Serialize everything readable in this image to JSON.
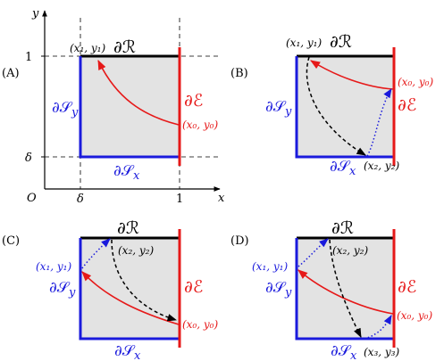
{
  "colors": {
    "region_fill": "#e3e3e3",
    "top_edge": "#000000",
    "left_bottom_edges": "#1a1adc",
    "right_edge": "#e61919",
    "red_curve": "#e61919",
    "black_dashed": "#000000",
    "blue_dotted": "#1a1adc"
  },
  "panels": {
    "A": {
      "letter": "(A)",
      "axis_y_label": "y",
      "axis_x_label": "x",
      "origin_label": "O",
      "tick_y_one": "1",
      "tick_y_delta": "δ",
      "tick_x_delta": "δ",
      "tick_x_one": "1",
      "R_label": "∂ℛ",
      "Sy_label": "∂𝒮",
      "Sy_sub": "y",
      "Sx_label": "∂𝒮",
      "Sx_sub": "x",
      "E_label": "∂ℰ",
      "pt1": "(x₁, y₁)",
      "pt0": "(x₀, y₀)"
    },
    "B": {
      "letter": "(B)",
      "R_label": "∂ℛ",
      "Sy_label": "∂𝒮",
      "Sy_sub": "y",
      "Sx_label": "∂𝒮",
      "Sx_sub": "x",
      "E_label": "∂ℰ",
      "pt1": "(x₁, y₁)",
      "pt0": "(x₀, y₀)",
      "pt2": "(x₂, y₂)"
    },
    "C": {
      "letter": "(C)",
      "R_label": "∂ℛ",
      "Sy_label": "∂𝒮",
      "Sy_sub": "y",
      "Sx_label": "∂𝒮",
      "Sx_sub": "x",
      "E_label": "∂ℰ",
      "pt1": "(x₁, y₁)",
      "pt0": "(x₀, y₀)",
      "pt2": "(x₂, y₂)"
    },
    "D": {
      "letter": "(D)",
      "R_label": "∂ℛ",
      "Sy_label": "∂𝒮",
      "Sy_sub": "y",
      "Sx_label": "∂𝒮",
      "Sx_sub": "x",
      "E_label": "∂ℰ",
      "pt1": "(x₁, y₁)",
      "pt0": "(x₀, y₀)",
      "pt2": "(x₂, y₂)",
      "pt3": "(x₃, y₃)"
    }
  }
}
